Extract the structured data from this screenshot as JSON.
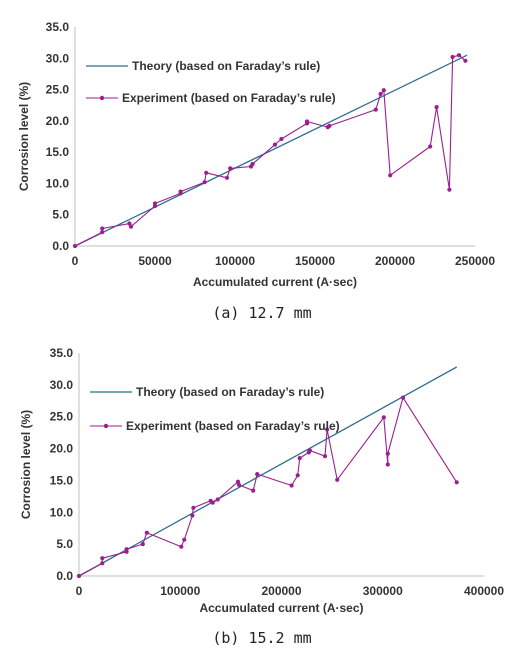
{
  "chart_data": [
    {
      "type": "line",
      "caption": "(a) 12.7 mm",
      "xlabel": "Accumulated current (A·sec)",
      "ylabel": "Corrosion level (%)",
      "xlim": [
        0,
        250000
      ],
      "ylim": [
        0,
        35
      ],
      "x_ticks": [
        "0",
        "50000",
        "100000",
        "150000",
        "200000",
        "250000"
      ],
      "y_ticks": [
        "0.0",
        "5.0",
        "10.0",
        "15.0",
        "20.0",
        "25.0",
        "30.0",
        "35.0"
      ],
      "grid": false,
      "legend_position": "top-left",
      "series": [
        {
          "name": "Theory (based on Faraday’s rule)",
          "color": "#2e6e8e",
          "marker": false,
          "points": [
            [
              0,
              0
            ],
            [
              245000,
              30.5
            ]
          ]
        },
        {
          "name": "Experiment (based on Faraday’s rule)",
          "color": "#9b1f8f",
          "marker": true,
          "points": [
            [
              0,
              0
            ],
            [
              17000,
              2.2
            ],
            [
              17000,
              2.8
            ],
            [
              34000,
              3.6
            ],
            [
              35000,
              3.1
            ],
            [
              50000,
              6.4
            ],
            [
              50000,
              6.8
            ],
            [
              66000,
              8.4
            ],
            [
              66000,
              8.7
            ],
            [
              81000,
              10.2
            ],
            [
              82000,
              11.7
            ],
            [
              95000,
              10.9
            ],
            [
              97000,
              12.4
            ],
            [
              110000,
              12.7
            ],
            [
              111000,
              13.1
            ],
            [
              125000,
              16.2
            ],
            [
              129000,
              17.1
            ],
            [
              145000,
              19.6
            ],
            [
              145000,
              19.9
            ],
            [
              158000,
              19.0
            ],
            [
              159000,
              19.2
            ],
            [
              188000,
              21.8
            ],
            [
              191000,
              24.3
            ],
            [
              193000,
              24.9
            ],
            [
              197000,
              11.3
            ],
            [
              222000,
              15.9
            ],
            [
              226000,
              22.2
            ],
            [
              234000,
              9.0
            ],
            [
              236000,
              30.2
            ],
            [
              240000,
              30.5
            ],
            [
              244000,
              29.6
            ]
          ]
        }
      ]
    },
    {
      "type": "line",
      "caption": "(b) 15.2 mm",
      "xlabel": "Accumulated current (A·sec)",
      "ylabel": "Corrosion level  (%)",
      "xlim": [
        0,
        400000
      ],
      "ylim": [
        0,
        35
      ],
      "x_ticks": [
        "0",
        "100000",
        "200000",
        "300000",
        "400000"
      ],
      "y_ticks": [
        "0.0",
        "5.0",
        "10.0",
        "15.0",
        "20.0",
        "25.0",
        "30.0",
        "35.0"
      ],
      "grid": false,
      "legend_position": "top-left",
      "series": [
        {
          "name": "Theory (based on Faraday’s rule)",
          "color": "#2e6e8e",
          "marker": false,
          "points": [
            [
              0,
              0
            ],
            [
              373000,
              32.8
            ]
          ]
        },
        {
          "name": "Experiment (based on Faraday’s rule)",
          "color": "#9b1f8f",
          "marker": true,
          "points": [
            [
              0,
              0
            ],
            [
              23000,
              2.0
            ],
            [
              23000,
              2.8
            ],
            [
              47000,
              3.8
            ],
            [
              47000,
              4.2
            ],
            [
              63000,
              5.0
            ],
            [
              67000,
              6.8
            ],
            [
              101000,
              4.6
            ],
            [
              104000,
              5.7
            ],
            [
              112000,
              9.5
            ],
            [
              113000,
              10.7
            ],
            [
              130000,
              11.8
            ],
            [
              132000,
              11.5
            ],
            [
              137000,
              12.0
            ],
            [
              157000,
              14.8
            ],
            [
              158000,
              14.3
            ],
            [
              172000,
              13.4
            ],
            [
              176000,
              16.0
            ],
            [
              210000,
              14.2
            ],
            [
              216000,
              15.8
            ],
            [
              218000,
              18.5
            ],
            [
              227000,
              19.4
            ],
            [
              228000,
              19.7
            ],
            [
              243000,
              18.8
            ],
            [
              245000,
              23.0
            ],
            [
              255000,
              15.1
            ],
            [
              301000,
              24.9
            ],
            [
              305000,
              17.5
            ],
            [
              305000,
              19.2
            ],
            [
              320000,
              28.0
            ],
            [
              373000,
              14.7
            ]
          ]
        }
      ]
    }
  ]
}
